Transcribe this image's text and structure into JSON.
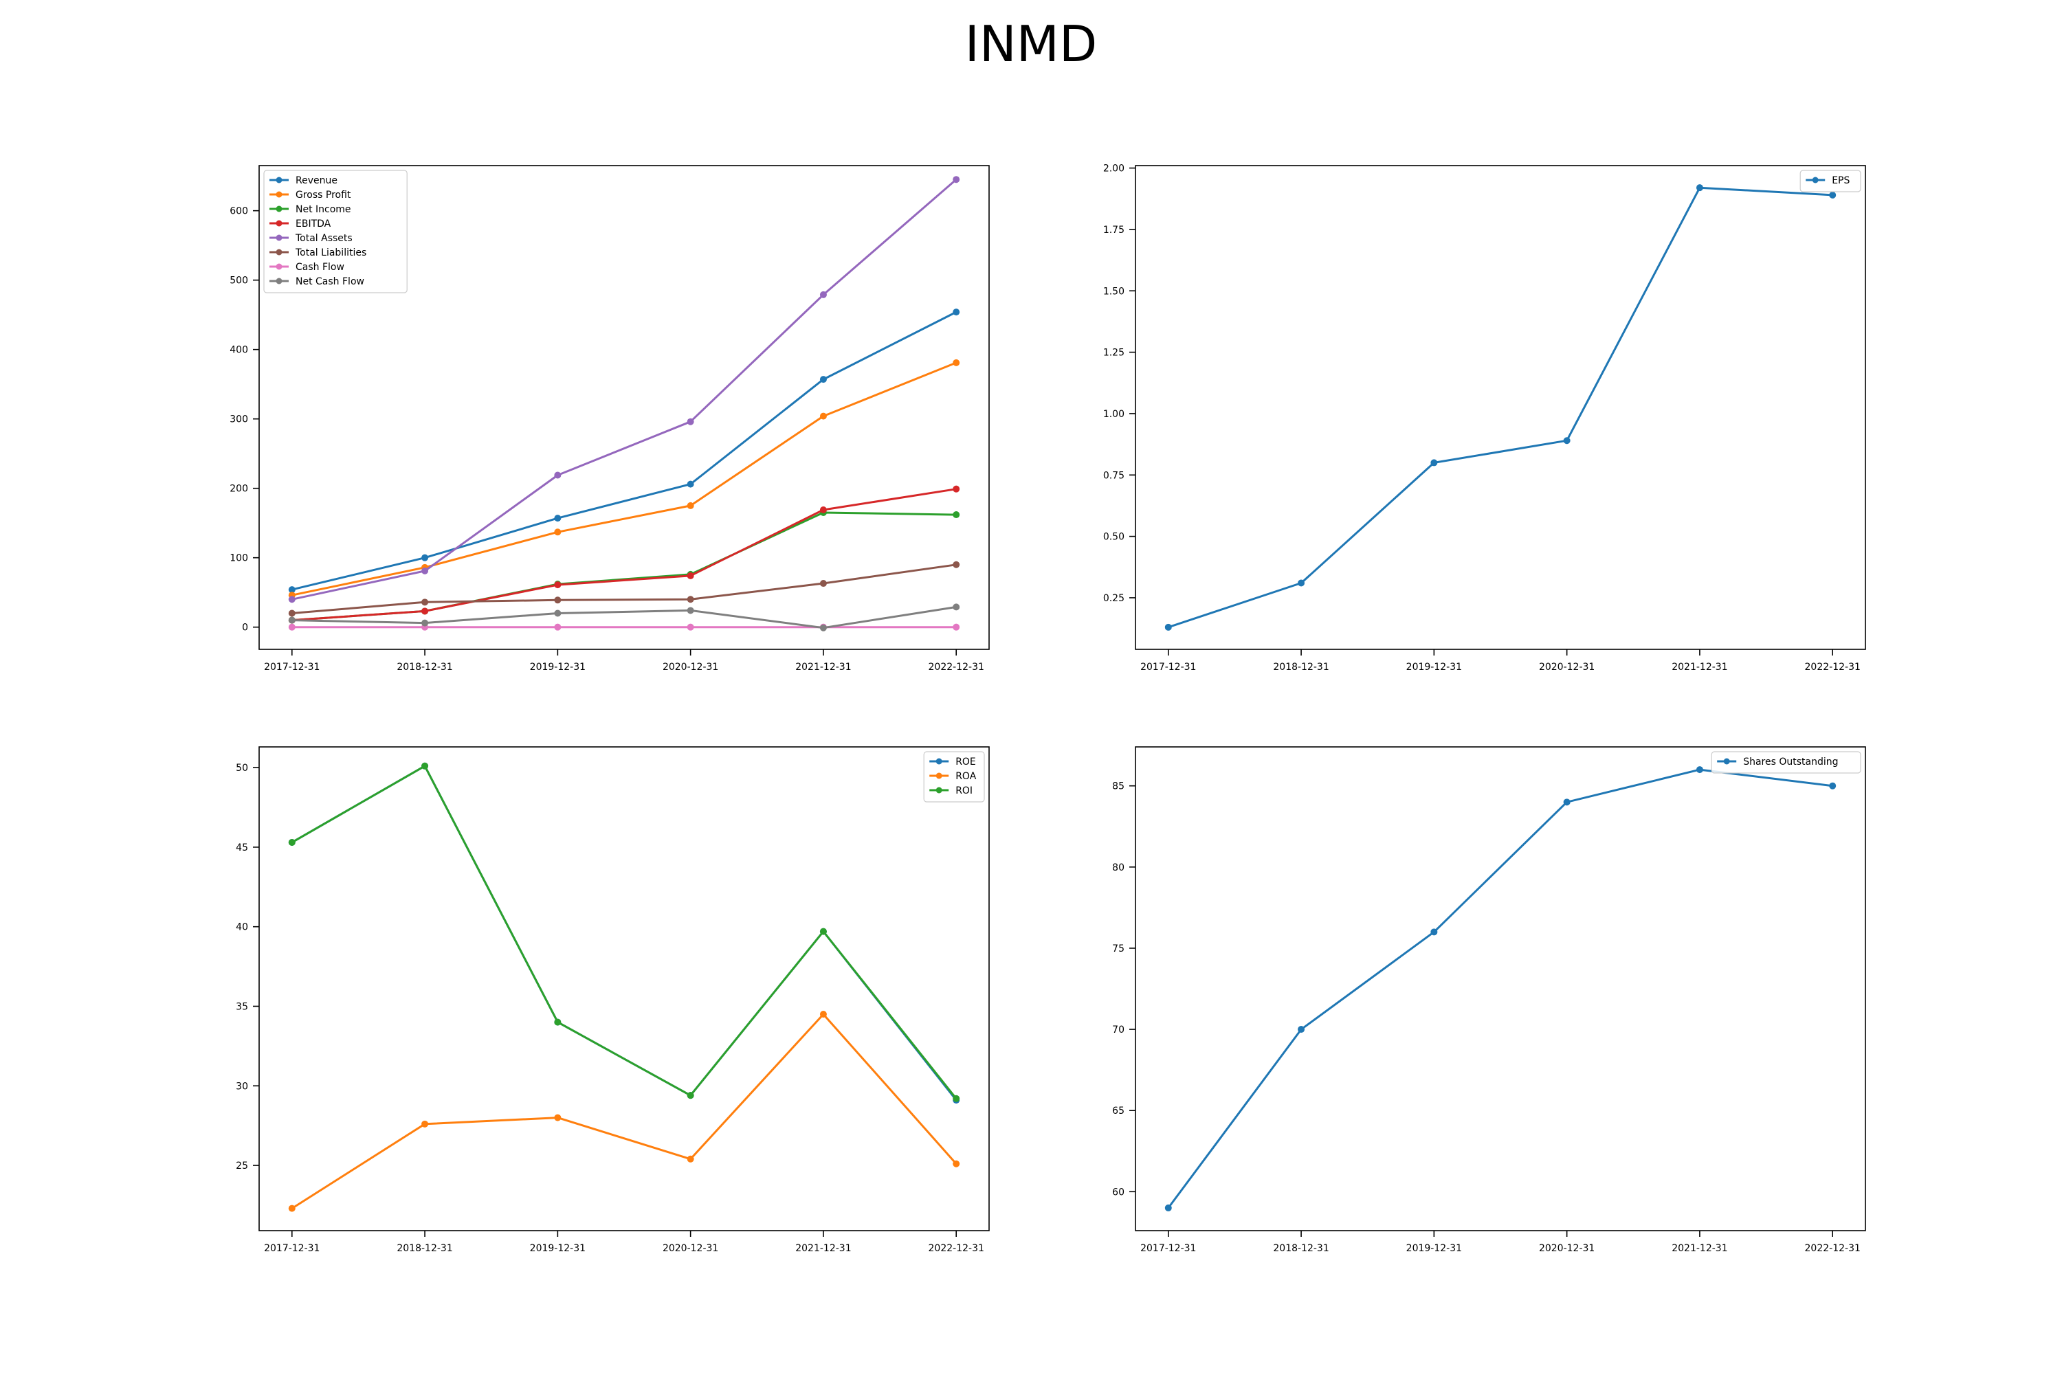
{
  "title": "INMD",
  "colors": [
    "#1f77b4",
    "#ff7f0e",
    "#2ca02c",
    "#d62728",
    "#9467bd",
    "#8c564b",
    "#e377c2",
    "#7f7f7f"
  ],
  "chart_data": [
    {
      "type": "line",
      "x": [
        "2017-12-31",
        "2018-12-31",
        "2019-12-31",
        "2020-12-31",
        "2021-12-31",
        "2022-12-31"
      ],
      "ylim": [
        -32,
        665
      ],
      "yticks": [
        0,
        100,
        200,
        300,
        400,
        500,
        600
      ],
      "tick_decimals": 0,
      "legend": "top-left",
      "grid": false,
      "series": [
        {
          "name": "Revenue",
          "values": [
            54,
            100,
            157,
            206,
            357,
            454
          ]
        },
        {
          "name": "Gross Profit",
          "values": [
            46,
            86,
            137,
            175,
            304,
            381
          ]
        },
        {
          "name": "Net Income",
          "values": [
            10,
            23,
            62,
            76,
            165,
            162
          ]
        },
        {
          "name": "EBITDA",
          "values": [
            10,
            23,
            61,
            74,
            169,
            199
          ]
        },
        {
          "name": "Total Assets",
          "values": [
            40,
            81,
            219,
            296,
            479,
            645
          ]
        },
        {
          "name": "Total Liabilities",
          "values": [
            20,
            36,
            39,
            40,
            63,
            90
          ]
        },
        {
          "name": "Cash Flow",
          "values": [
            0,
            0,
            0,
            0,
            0,
            0
          ]
        },
        {
          "name": "Net Cash Flow",
          "values": [
            10,
            6,
            20,
            24,
            -1,
            29
          ]
        }
      ]
    },
    {
      "type": "line",
      "x": [
        "2017-12-31",
        "2018-12-31",
        "2019-12-31",
        "2020-12-31",
        "2021-12-31",
        "2022-12-31"
      ],
      "ylim": [
        0.04,
        2.01
      ],
      "yticks": [
        0.25,
        0.5,
        0.75,
        1.0,
        1.25,
        1.5,
        1.75,
        2.0
      ],
      "tick_decimals": 2,
      "legend": "top-right",
      "grid": false,
      "series": [
        {
          "name": "EPS",
          "values": [
            0.13,
            0.31,
            0.8,
            0.89,
            1.92,
            1.89
          ]
        }
      ]
    },
    {
      "type": "line",
      "x": [
        "2017-12-31",
        "2018-12-31",
        "2019-12-31",
        "2020-12-31",
        "2021-12-31",
        "2022-12-31"
      ],
      "ylim": [
        20.9,
        51.3
      ],
      "yticks": [
        25,
        30,
        35,
        40,
        45,
        50
      ],
      "tick_decimals": 0,
      "legend": "top-right",
      "grid": false,
      "series": [
        {
          "name": "ROE",
          "values": [
            45.3,
            50.1,
            34.0,
            29.4,
            39.7,
            29.1
          ]
        },
        {
          "name": "ROA",
          "values": [
            22.3,
            27.6,
            28.0,
            25.4,
            34.5,
            25.1
          ]
        },
        {
          "name": "ROI",
          "values": [
            45.3,
            50.1,
            34.0,
            29.4,
            39.7,
            29.2
          ]
        }
      ]
    },
    {
      "type": "line",
      "x": [
        "2017-12-31",
        "2018-12-31",
        "2019-12-31",
        "2020-12-31",
        "2021-12-31",
        "2022-12-31"
      ],
      "ylim": [
        57.6,
        87.4
      ],
      "yticks": [
        60,
        65,
        70,
        75,
        80,
        85
      ],
      "tick_decimals": 0,
      "legend": "top-right",
      "grid": false,
      "series": [
        {
          "name": "Shares Outstanding",
          "values": [
            59,
            70,
            76,
            84,
            86,
            85
          ]
        }
      ]
    }
  ]
}
